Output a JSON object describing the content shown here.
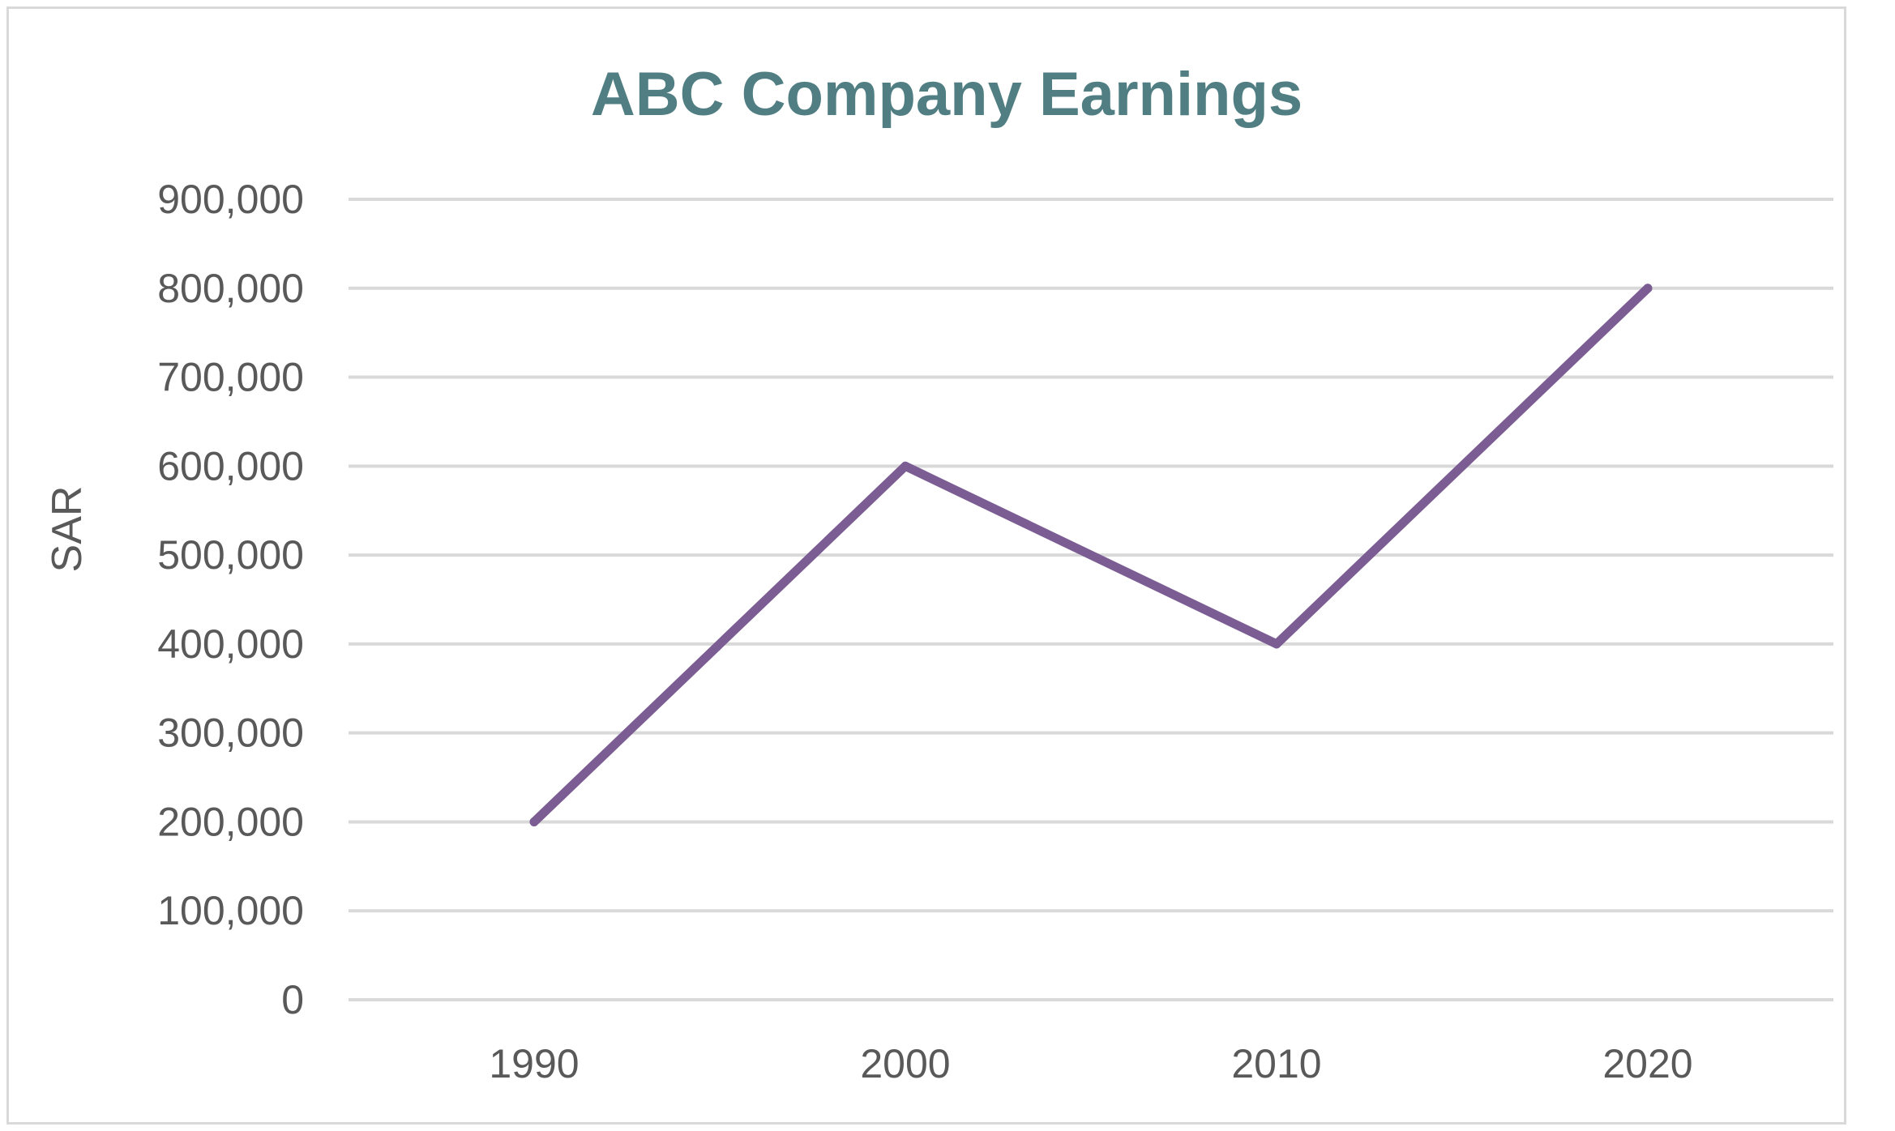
{
  "chart_data": {
    "type": "line",
    "title": "ABC Company Earnings",
    "xlabel": "",
    "ylabel": "SAR",
    "categories": [
      "1990",
      "2000",
      "2010",
      "2020"
    ],
    "series": [
      {
        "values": [
          200000,
          600000,
          400000,
          800000
        ]
      }
    ],
    "y_ticks": [
      "0",
      "100,000",
      "200,000",
      "300,000",
      "400,000",
      "500,000",
      "600,000",
      "700,000",
      "800,000",
      "900,000"
    ],
    "ylim": [
      0,
      900000
    ],
    "grid": true,
    "legend": "none",
    "colors": {
      "title": "#507e82",
      "line": "#7b5d93",
      "grid": "#d9d9d9",
      "text": "#595959",
      "frame": "#d9d9d9"
    }
  }
}
